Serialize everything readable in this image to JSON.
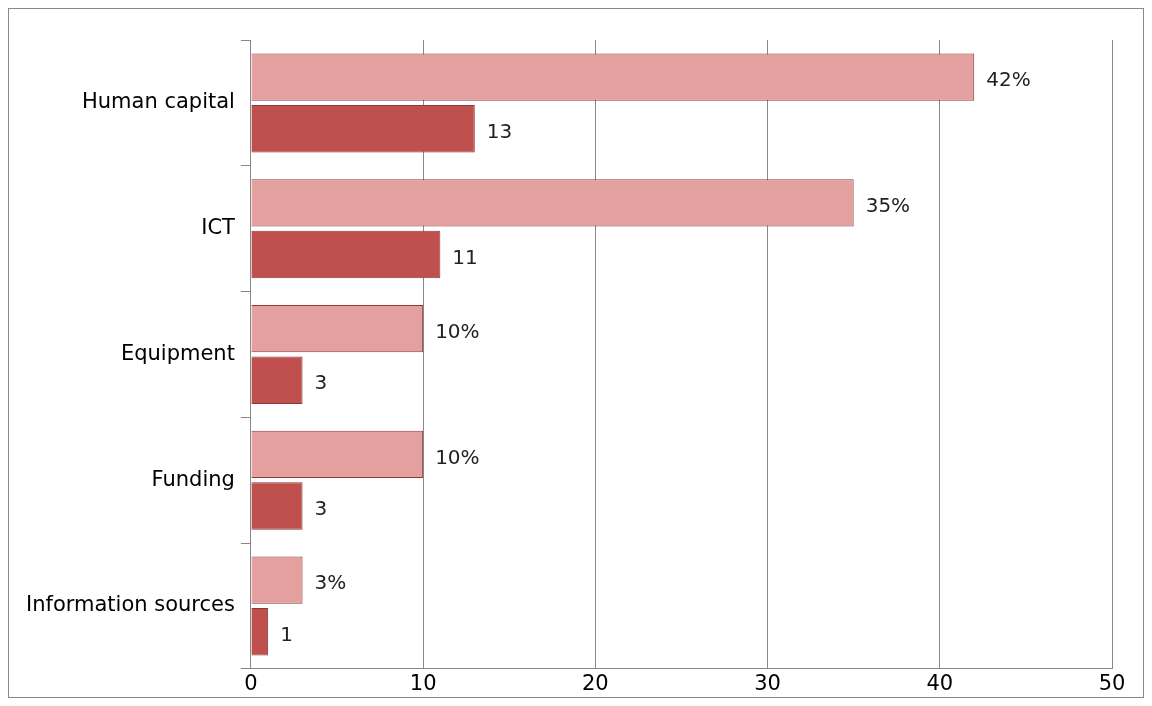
{
  "chart_data": {
    "type": "bar",
    "orientation": "horizontal",
    "categories": [
      "Human capital",
      "ICT",
      "Equipment",
      "Funding",
      "Information sources"
    ],
    "series": [
      {
        "color": "#e3a09f",
        "values": [
          42,
          35,
          10,
          10,
          3
        ],
        "value_labels": [
          "42%",
          "35%",
          "10%",
          "10%",
          "3%"
        ]
      },
      {
        "color": "#c0504d",
        "values": [
          13,
          11,
          3,
          3,
          1
        ],
        "value_labels": [
          "13",
          "11",
          "3",
          "3",
          "1"
        ]
      }
    ],
    "xlim": [
      0,
      50
    ],
    "xticks": [
      0,
      10,
      20,
      30,
      40,
      50
    ],
    "grid": "x",
    "legend": false
  }
}
